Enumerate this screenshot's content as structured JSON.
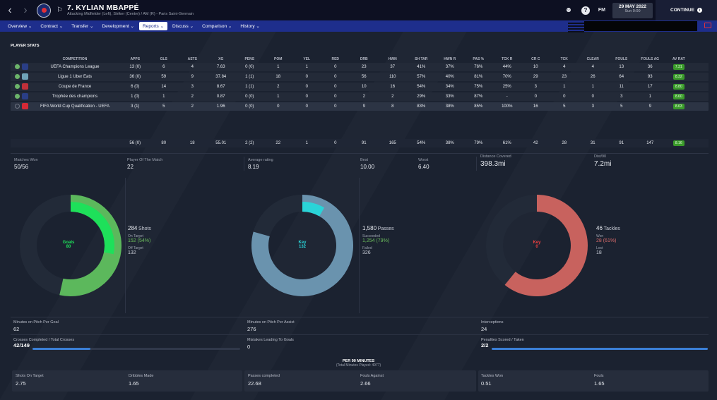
{
  "header": {
    "back_icon": "chevron-left-icon",
    "forward_icon": "chevron-right-icon",
    "club_badge_icon": "psg-crest-icon",
    "scout_icon": "binoculars-icon",
    "player_name": "7. KYLIAN MBAPPÉ",
    "player_subtitle": "Attacking Midfielder (Left), Striker (Centre) / AM (R) - Paris Saint-Germain",
    "info_icon": "?",
    "fm_label": "FM",
    "date": "29 MAY 2022",
    "day_time": "Sun 0:00",
    "continue_label": "CONTINUE"
  },
  "tabs": [
    {
      "label": "Overview"
    },
    {
      "label": "Contract"
    },
    {
      "label": "Transfer"
    },
    {
      "label": "Development"
    },
    {
      "label": "Reports"
    },
    {
      "label": "Discuss"
    },
    {
      "label": "Comparison"
    },
    {
      "label": "History"
    }
  ],
  "active_tab": "Reports",
  "section_title": "PLAYER STATS",
  "table": {
    "headers": [
      "COMPETITION",
      "APPS",
      "GLS",
      "ASTS",
      "XG",
      "PENS",
      "POM",
      "YEL",
      "RED",
      "DRB",
      "HWN",
      "SH TAR",
      "HWN R",
      "PAS %",
      "TCK R",
      "CR C",
      "TCK",
      "CLEAR",
      "FOULS",
      "FOULS AG",
      "AV RAT"
    ],
    "rows": [
      {
        "competition": "UEFA Champions League",
        "cells": [
          "13 (0)",
          "6",
          "4",
          "7.63",
          "0 (0)",
          "1",
          "1",
          "0",
          "23",
          "37",
          "41%",
          "37%",
          "76%",
          "44%",
          "10",
          "4",
          "4",
          "13",
          "36"
        ],
        "rating": "7.31"
      },
      {
        "competition": "Ligue 1 Uber Eats",
        "cells": [
          "36 (0)",
          "59",
          "9",
          "37.84",
          "1 (1)",
          "18",
          "0",
          "0",
          "56",
          "110",
          "57%",
          "40%",
          "81%",
          "70%",
          "29",
          "23",
          "26",
          "64",
          "93"
        ],
        "rating": "8.32"
      },
      {
        "competition": "Coupe de France",
        "cells": [
          "6 (0)",
          "14",
          "3",
          "8.67",
          "1 (1)",
          "2",
          "0",
          "0",
          "10",
          "16",
          "54%",
          "34%",
          "75%",
          "25%",
          "3",
          "1",
          "1",
          "11",
          "17"
        ],
        "rating": "8.80"
      },
      {
        "competition": "Trophée des champions",
        "cells": [
          "1 (0)",
          "1",
          "2",
          "0.87",
          "0 (0)",
          "1",
          "0",
          "0",
          "2",
          "2",
          "29%",
          "33%",
          "87%",
          "-",
          "0",
          "0",
          "0",
          "3",
          "1"
        ],
        "rating": "8.60"
      },
      {
        "competition": "FIFA World Cup Qualification - UEFA",
        "cells": [
          "3 (1)",
          "5",
          "2",
          "1.96",
          "0 (0)",
          "0",
          "0",
          "0",
          "9",
          "8",
          "83%",
          "38%",
          "85%",
          "100%",
          "16",
          "5",
          "3",
          "5",
          "9"
        ],
        "rating": "8.63"
      }
    ],
    "totals": [
      "56 (0)",
      "80",
      "18",
      "55.01",
      "2 (2)",
      "22",
      "1",
      "0",
      "91",
      "165",
      "54%",
      "38%",
      "79%",
      "61%",
      "42",
      "28",
      "31",
      "91",
      "147"
    ],
    "totals_rating": "8.16"
  },
  "summary": {
    "matches_won_label": "Matches Won",
    "matches_won": "50/56",
    "pom_label": "Player Of The Match",
    "pom": "22",
    "avg_rating_label": "Average rating",
    "avg_rating": "8.19",
    "best_label": "Best",
    "best": "10.00",
    "worst_label": "Worst",
    "worst": "6.40",
    "distance_label": "Distance Covered",
    "distance": "398.3mi",
    "dist90_label": "Dist/90",
    "dist90": "7.2mi"
  },
  "donuts": {
    "shooting": {
      "center_label": "Goals",
      "center_value": "80",
      "shots": "284",
      "shots_label": "Shots",
      "on_target_label": "On Target",
      "on_target": "152 (54%)",
      "off_target_label": "Off Target",
      "off_target": "132",
      "total": 284,
      "on_target_value": 152,
      "goals_value": 80,
      "color_main": "#5cb85c",
      "color_highlight": "#1ee05a"
    },
    "passing": {
      "center_label": "Key",
      "center_value": "132",
      "passes": "1,580",
      "passes_label": "Passes",
      "succeeded_label": "Succeeded",
      "succeeded": "1,254 (79%)",
      "failed_label": "Failed",
      "failed": "326",
      "total": 1580,
      "succeeded_value": 1254,
      "key_value": 132,
      "color_main": "#6a93ae",
      "color_highlight": "#2ad4d8"
    },
    "tackling": {
      "center_label": "Key",
      "center_value": "0",
      "tackles": "46",
      "tackles_label": "Tackles",
      "won_label": "Won",
      "won": "28 (61%)",
      "lost_label": "Lost",
      "lost": "18",
      "total": 46,
      "won_value": 28,
      "key_value": 0,
      "color_main": "#c8625e",
      "color_highlight": "#f04040"
    }
  },
  "bottom": {
    "mpg_label": "Minutes on Pitch Per Goal",
    "mpg": "62",
    "mpa_label": "Minutes on Pitch Per Assist",
    "mpa": "276",
    "interceptions_label": "Interceptions",
    "interceptions": "24",
    "crosses_label": "Crosses Completed / Total Crosses",
    "crosses": "42/149",
    "crosses_fraction": 0.28,
    "mistakes_label": "Mistakes Leading To Goals",
    "mistakes": "0",
    "penalties_label": "Penalties Scored / Taken",
    "penalties": "2/2",
    "penalties_fraction": 1.0
  },
  "per90": {
    "title": "PER 90 MINUTES",
    "subtitle": "(Total Minutes Played: 4977)",
    "items": [
      {
        "label": "Shots On Target",
        "value": "2.75"
      },
      {
        "label": "Dribbles Made",
        "value": "1.65"
      },
      {
        "label": "Passes completed",
        "value": "22.68"
      },
      {
        "label": "Fouls Against",
        "value": "2.66"
      },
      {
        "label": "Tackles Won",
        "value": "0.51"
      },
      {
        "label": "Fouls",
        "value": "1.65"
      }
    ]
  }
}
